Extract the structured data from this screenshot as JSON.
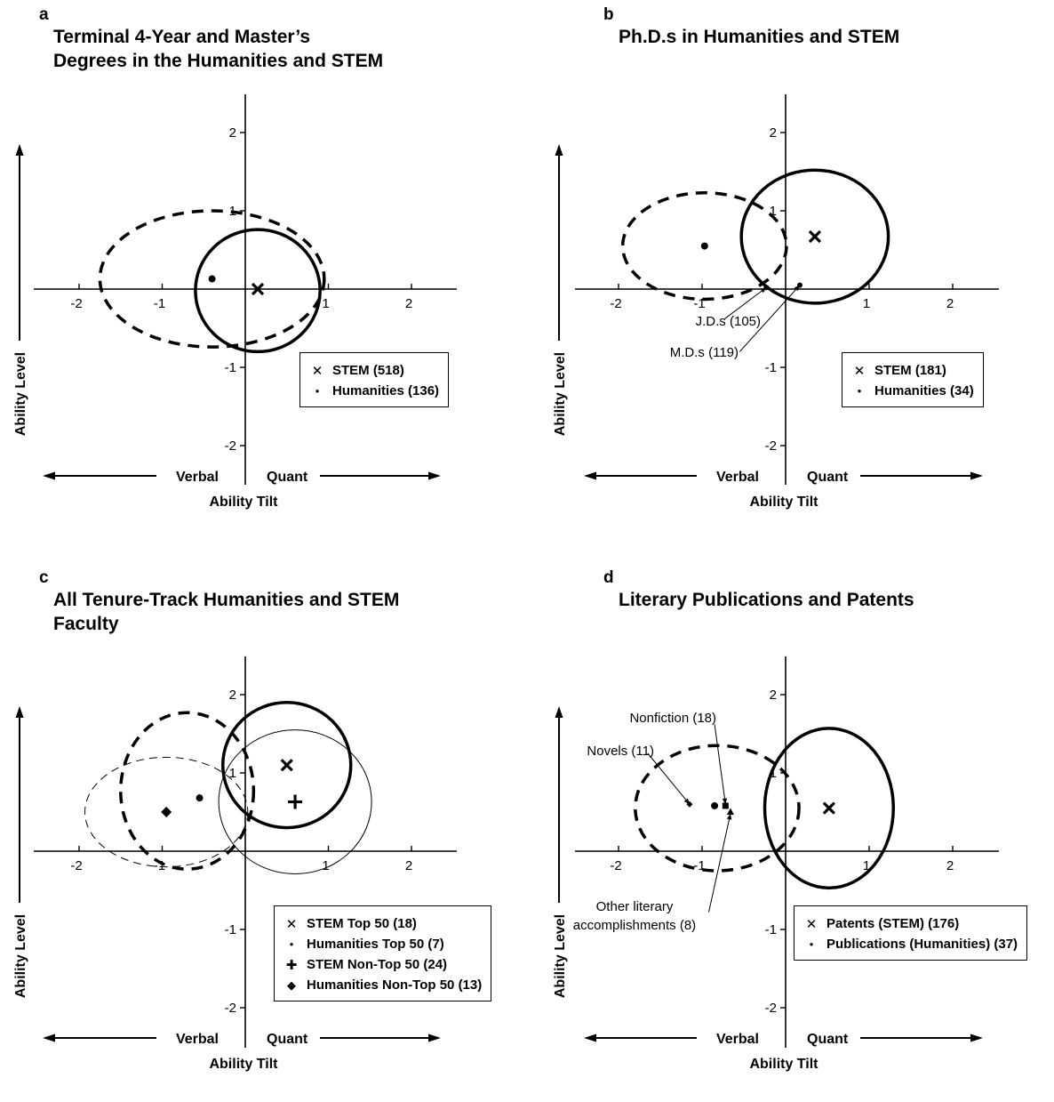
{
  "common": {
    "ylabel": "Ability Level",
    "xlabel": "Ability Tilt",
    "left_arrow_label": "Verbal",
    "right_arrow_label": "Quant"
  },
  "panels": [
    {
      "letter": "a",
      "title": "Terminal 4-Year and Master’s\nDegrees in the Humanities and STEM",
      "legend": [
        {
          "marker": "x",
          "label": "STEM (518)"
        },
        {
          "marker": "dot",
          "label": "Humanities (136)"
        }
      ]
    },
    {
      "letter": "b",
      "title": "Ph.D.s in Humanities and STEM",
      "legend": [
        {
          "marker": "x",
          "label": "STEM (181)"
        },
        {
          "marker": "dot",
          "label": "Humanities (34)"
        }
      ]
    },
    {
      "letter": "c",
      "title": "All Tenure-Track Humanities and STEM\nFaculty",
      "legend": [
        {
          "marker": "x",
          "label": "STEM Top 50 (18)"
        },
        {
          "marker": "dot",
          "label": "Humanities Top 50 (7)"
        },
        {
          "marker": "plus",
          "label": "STEM Non-Top 50 (24)"
        },
        {
          "marker": "diamond",
          "label": "Humanities Non-Top 50 (13)"
        }
      ]
    },
    {
      "letter": "d",
      "title": "Literary Publications and Patents",
      "legend": [
        {
          "marker": "x",
          "label": "Patents (STEM) (176)"
        },
        {
          "marker": "dot",
          "label": "Publications (Humanities) (37)"
        }
      ]
    }
  ],
  "chart_data": [
    {
      "type": "scatter",
      "title": "Terminal 4-Year and Master’s Degrees in the Humanities and STEM",
      "xlabel": "Ability Tilt",
      "ylabel": "Ability Level",
      "xlim": [
        -2.5,
        2.5
      ],
      "ylim": [
        -2.5,
        2.5
      ],
      "xticks": [
        -2,
        -1,
        1,
        2
      ],
      "yticks": [
        -2,
        -1,
        1,
        2
      ],
      "points": [
        {
          "name": "STEM (518)",
          "marker": "x",
          "x": 0.15,
          "y": 0.0
        },
        {
          "name": "Humanities (136)",
          "marker": "dot",
          "x": -0.4,
          "y": 0.13
        }
      ],
      "ellipses": [
        {
          "group": "STEM (518)",
          "style": "solid-thick",
          "cx": 0.15,
          "cy": -0.02,
          "rx": 0.75,
          "ry": 0.78
        },
        {
          "group": "Humanities (136)",
          "style": "dashed-thick",
          "cx": -0.4,
          "cy": 0.13,
          "rx": 1.35,
          "ry": 0.87
        }
      ],
      "annotations": []
    },
    {
      "type": "scatter",
      "title": "Ph.D.s in Humanities and STEM",
      "xlabel": "Ability Tilt",
      "ylabel": "Ability Level",
      "xlim": [
        -2.5,
        2.5
      ],
      "ylim": [
        -2.5,
        2.5
      ],
      "xticks": [
        -2,
        -1,
        1,
        2
      ],
      "yticks": [
        -2,
        -1,
        1,
        2
      ],
      "points": [
        {
          "name": "STEM (181)",
          "marker": "x",
          "x": 0.35,
          "y": 0.67
        },
        {
          "name": "Humanities (34)",
          "marker": "dot",
          "x": -0.97,
          "y": 0.55
        },
        {
          "name": "J.D.s (105)",
          "marker": "small-dot",
          "x": -0.23,
          "y": 0.02
        },
        {
          "name": "M.D.s (119)",
          "marker": "small-dot",
          "x": 0.17,
          "y": 0.05
        }
      ],
      "ellipses": [
        {
          "group": "STEM (181)",
          "style": "solid-thick",
          "cx": 0.35,
          "cy": 0.67,
          "rx": 0.88,
          "ry": 0.85
        },
        {
          "group": "Humanities (34)",
          "style": "dashed-thick",
          "cx": -0.97,
          "cy": 0.55,
          "rx": 0.98,
          "ry": 0.68
        }
      ],
      "annotations": [
        {
          "text": "J.D.s (105)",
          "from": [
            -0.73,
            -0.38
          ],
          "to": [
            -0.23,
            0.02
          ]
        },
        {
          "text": "M.D.s (119)",
          "from": [
            -0.55,
            -0.8
          ],
          "to": [
            0.17,
            0.05
          ]
        }
      ]
    },
    {
      "type": "scatter",
      "title": "All Tenure-Track Humanities and STEM Faculty",
      "xlabel": "Ability Tilt",
      "ylabel": "Ability Level",
      "xlim": [
        -2.5,
        2.5
      ],
      "ylim": [
        -2.5,
        2.5
      ],
      "xticks": [
        -2,
        -1,
        1,
        2
      ],
      "yticks": [
        -2,
        -1,
        1,
        2
      ],
      "points": [
        {
          "name": "STEM Top 50 (18)",
          "marker": "x",
          "x": 0.5,
          "y": 1.1
        },
        {
          "name": "Humanities Top 50 (7)",
          "marker": "dot",
          "x": -0.55,
          "y": 0.68
        },
        {
          "name": "STEM Non-Top 50 (24)",
          "marker": "plus",
          "x": 0.6,
          "y": 0.63
        },
        {
          "name": "Humanities Non-Top 50 (13)",
          "marker": "diamond",
          "x": -0.95,
          "y": 0.5
        }
      ],
      "ellipses": [
        {
          "group": "STEM Top 50 (18)",
          "style": "solid-thick",
          "cx": 0.5,
          "cy": 1.1,
          "rx": 0.77,
          "ry": 0.8
        },
        {
          "group": "Humanities Top 50 (7)",
          "style": "dashed-thick",
          "cx": -0.7,
          "cy": 0.77,
          "rx": 0.8,
          "ry": 1.0
        },
        {
          "group": "STEM Non-Top 50 (24)",
          "style": "solid-thin",
          "cx": 0.6,
          "cy": 0.63,
          "rx": 0.92,
          "ry": 0.92
        },
        {
          "group": "Humanities Non-Top 50 (13)",
          "style": "dashed-thin",
          "cx": -0.95,
          "cy": 0.5,
          "rx": 0.98,
          "ry": 0.7
        }
      ],
      "annotations": []
    },
    {
      "type": "scatter",
      "title": "Literary Publications and Patents",
      "xlabel": "Ability Tilt",
      "ylabel": "Ability Level",
      "xlim": [
        -2.5,
        2.5
      ],
      "ylim": [
        -2.5,
        2.5
      ],
      "xticks": [
        -2,
        -1,
        1,
        2
      ],
      "yticks": [
        -2,
        -1,
        1,
        2
      ],
      "points": [
        {
          "name": "Patents (STEM) (176)",
          "marker": "x",
          "x": 0.52,
          "y": 0.55
        },
        {
          "name": "Publications (Humanities) (37)",
          "marker": "dot",
          "x": -0.85,
          "y": 0.58
        },
        {
          "name": "Novels (11)",
          "marker": "small-diamond",
          "x": -1.15,
          "y": 0.6
        },
        {
          "name": "Nonfiction (18)",
          "marker": "square",
          "x": -0.72,
          "y": 0.58
        },
        {
          "name": "Other literary accomplishments (8)",
          "marker": "triangle",
          "x": -0.66,
          "y": 0.5
        }
      ],
      "ellipses": [
        {
          "group": "Patents (STEM) (176)",
          "style": "solid-thick",
          "cx": 0.52,
          "cy": 0.55,
          "rx": 0.77,
          "ry": 1.02
        },
        {
          "group": "Publications (Humanities) (37)",
          "style": "dashed-thick",
          "cx": -0.82,
          "cy": 0.55,
          "rx": 0.98,
          "ry": 0.8
        }
      ],
      "annotations": [
        {
          "text": "Nonfiction (18)",
          "from": [
            -0.85,
            1.62
          ],
          "to": [
            -0.72,
            0.6
          ]
        },
        {
          "text": "Novels (11)",
          "from": [
            -1.65,
            1.25
          ],
          "to": [
            -1.15,
            0.6
          ]
        },
        {
          "text": "Other literary accomplishments (8)",
          "from": [
            -0.92,
            -0.78
          ],
          "to": [
            -0.66,
            0.48
          ]
        }
      ]
    }
  ]
}
